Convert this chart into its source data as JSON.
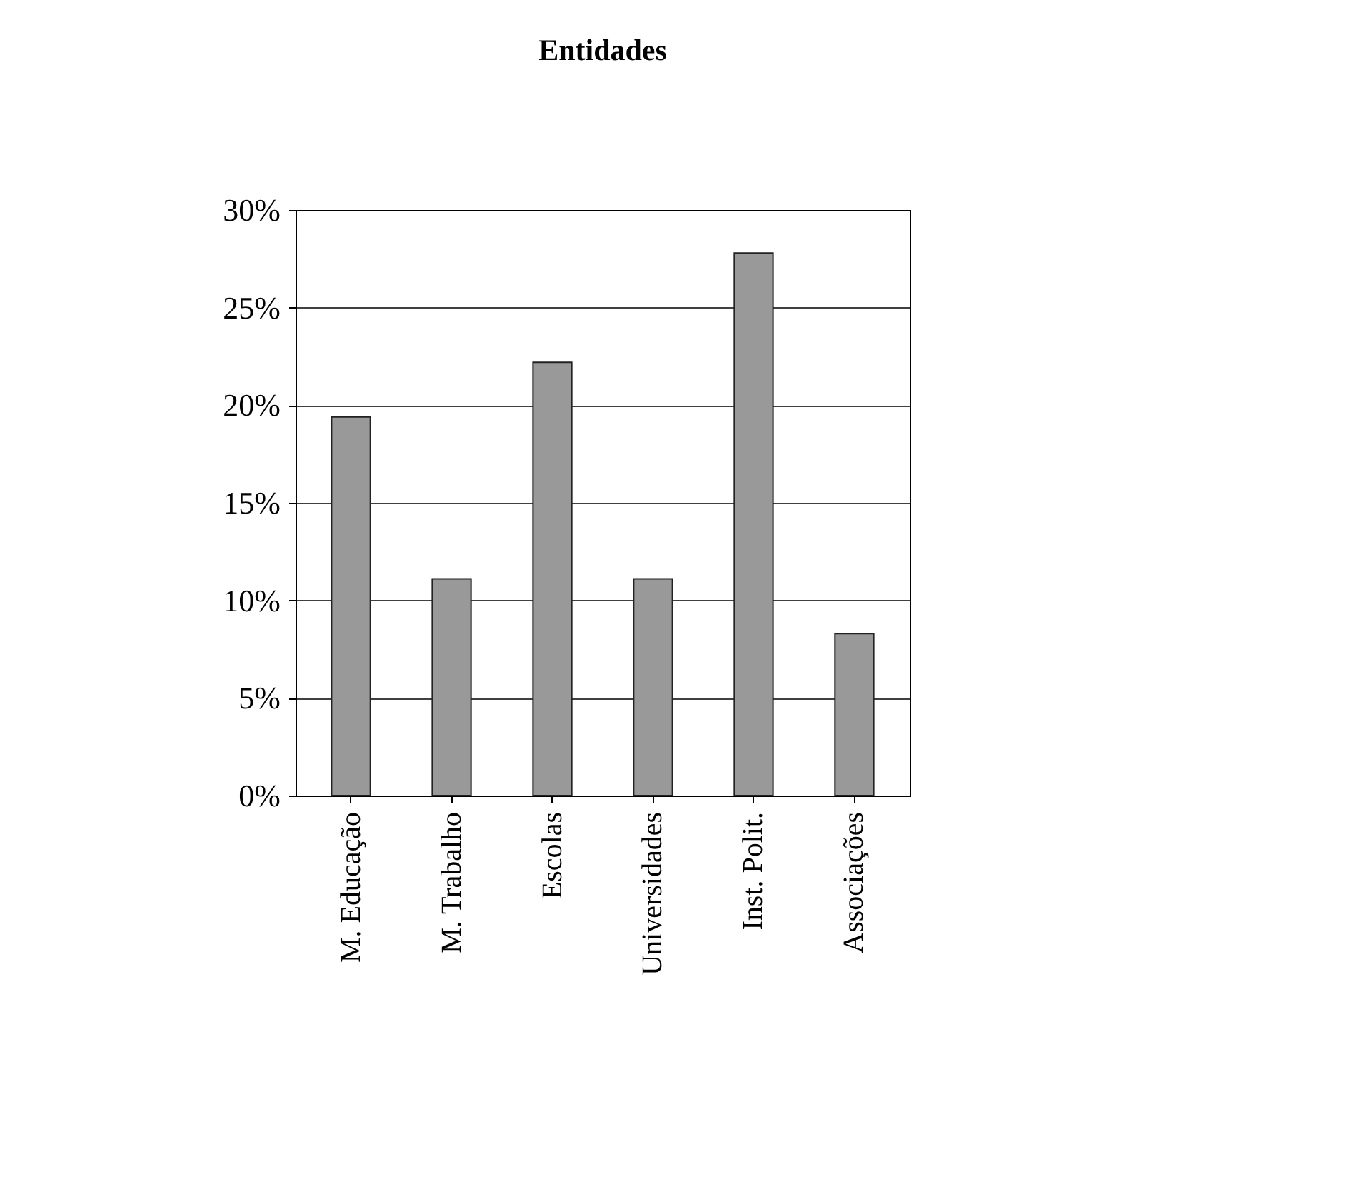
{
  "chart_data": {
    "type": "bar",
    "title": "Entidades",
    "categories": [
      "M. Educação",
      "M. Trabalho",
      "Escolas",
      "Universidades",
      "Inst. Polit.",
      "Associações"
    ],
    "values": [
      19.4,
      11.1,
      22.2,
      11.1,
      27.8,
      8.3
    ],
    "color": "#999999",
    "ylim": [
      0,
      30
    ],
    "yticks": [
      {
        "value": 0,
        "label": "0%"
      },
      {
        "value": 5,
        "label": "5%"
      },
      {
        "value": 10,
        "label": "10%"
      },
      {
        "value": 15,
        "label": "15%"
      },
      {
        "value": 20,
        "label": "20%"
      },
      {
        "value": 25,
        "label": "25%"
      },
      {
        "value": 30,
        "label": "30%"
      }
    ],
    "grid": "y"
  }
}
